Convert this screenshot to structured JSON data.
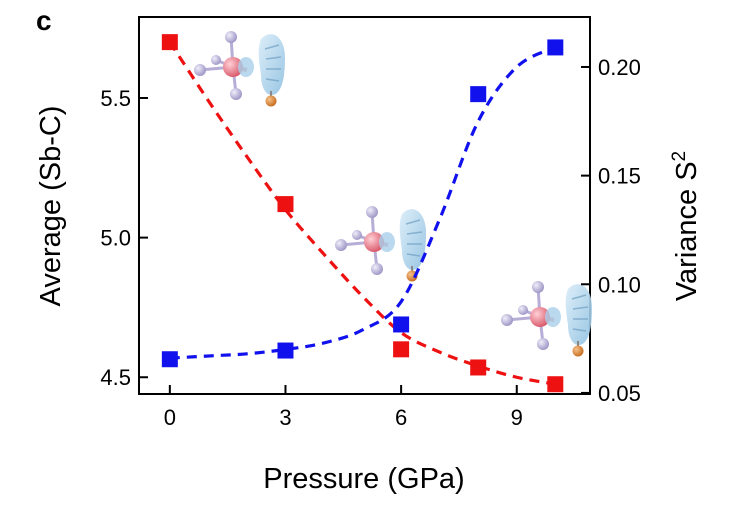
{
  "panel_label": "c",
  "chart_data": {
    "type": "scatter",
    "xlabel": "Pressure (GPa)",
    "ylabel_left": "Average (Sb-C)",
    "ylabel_right_main": "Variance S",
    "ylabel_right_sup": "2",
    "xlim": [
      -0.8,
      10.9
    ],
    "ylim_left": [
      4.44,
      5.79
    ],
    "ylim_right": [
      0.0495,
      0.223
    ],
    "x_ticks": [
      0,
      3,
      6,
      9
    ],
    "y_left_ticks": [
      4.5,
      5.0,
      5.5
    ],
    "y_right_ticks": [
      0.05,
      0.1,
      0.15,
      0.2
    ],
    "x_tick_labels": [
      "0",
      "3",
      "6",
      "9"
    ],
    "y_left_tick_labels": [
      "4.5",
      "5.0",
      "5.5"
    ],
    "y_right_tick_labels": [
      "0.05",
      "0.10",
      "0.15",
      "0.20"
    ],
    "grid": false,
    "series": [
      {
        "axis": "left",
        "color": "#ee1111",
        "marker": "square",
        "x": [
          0,
          3,
          6,
          8,
          10
        ],
        "y": [
          5.7,
          5.12,
          4.6,
          4.535,
          4.475
        ],
        "fit_x": [
          0,
          1,
          2,
          3,
          4,
          5,
          6,
          7,
          8,
          9,
          10
        ],
        "fit_y": [
          5.7,
          5.49,
          5.29,
          5.1,
          4.94,
          4.79,
          4.66,
          4.59,
          4.54,
          4.5,
          4.475
        ]
      },
      {
        "axis": "right",
        "color": "#1111ee",
        "marker": "square",
        "x": [
          0,
          3,
          6,
          8,
          10
        ],
        "y": [
          0.0655,
          0.0695,
          0.0815,
          0.1875,
          0.209
        ],
        "fit_x": [
          0,
          1,
          2,
          3,
          4,
          5,
          6,
          7,
          8,
          9,
          10
        ],
        "fit_y": [
          0.066,
          0.067,
          0.068,
          0.07,
          0.073,
          0.079,
          0.092,
          0.13,
          0.175,
          0.2,
          0.209
        ]
      }
    ]
  }
}
